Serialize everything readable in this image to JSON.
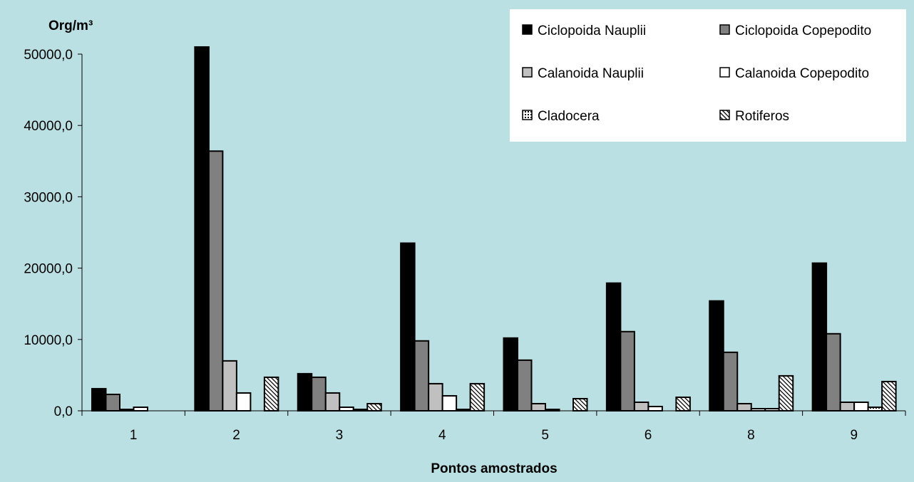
{
  "chart_data": {
    "type": "bar",
    "title": "",
    "ylabel": "Org/m³",
    "xlabel": "Pontos amostrados",
    "ylim": [
      0,
      50000
    ],
    "yticks": [
      "0,0",
      "10000,0",
      "20000,0",
      "30000,0",
      "40000,0",
      "50000,0"
    ],
    "ytick_values": [
      0,
      10000,
      20000,
      30000,
      40000,
      50000
    ],
    "categories": [
      "1",
      "2",
      "3",
      "4",
      "5",
      "6",
      "8",
      "9"
    ],
    "legend_position": "top-right",
    "series": [
      {
        "name": "Ciclopoida Nauplii",
        "fill": "#000000",
        "pattern": "solid",
        "values": [
          3100,
          51000,
          5200,
          23500,
          10200,
          17900,
          15400,
          20700
        ]
      },
      {
        "name": "Ciclopoida Copepodito",
        "fill": "#808080",
        "pattern": "solid",
        "values": [
          2300,
          36400,
          4700,
          9800,
          7100,
          11100,
          8200,
          10800
        ]
      },
      {
        "name": "Calanoida Nauplii",
        "fill": "#c0c0c0",
        "pattern": "solid",
        "values": [
          200,
          7000,
          2500,
          3800,
          1000,
          1200,
          1000,
          1200
        ]
      },
      {
        "name": "Calanoida Copepodito",
        "fill": "#ffffff",
        "pattern": "solid",
        "values": [
          500,
          2500,
          500,
          2100,
          200,
          600,
          300,
          1200
        ]
      },
      {
        "name": "Cladocera",
        "fill": "#ffffff",
        "pattern": "dots",
        "values": [
          0,
          0,
          200,
          200,
          0,
          0,
          300,
          500
        ]
      },
      {
        "name": "Rotiferos",
        "fill": "#ffffff",
        "pattern": "hatch",
        "values": [
          0,
          4700,
          1000,
          3800,
          1700,
          1900,
          4900,
          4100
        ]
      }
    ]
  }
}
